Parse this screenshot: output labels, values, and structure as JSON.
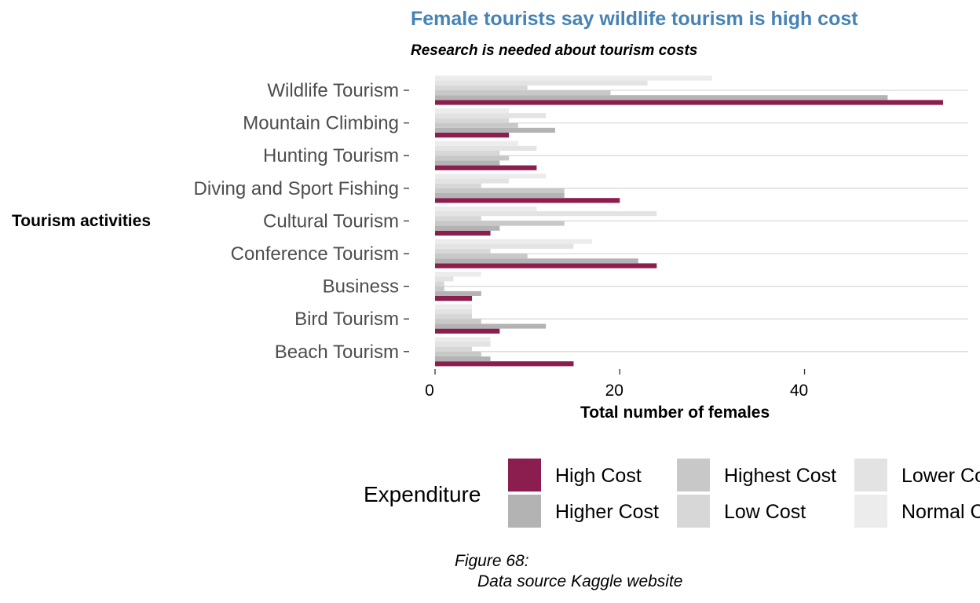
{
  "chart_data": {
    "type": "bar",
    "orientation": "horizontal",
    "title": "Female tourists say wildlife tourism is high cost",
    "subtitle": "Research is needed about tourism costs",
    "xlabel": "Total number of females",
    "ylabel": "Tourism activities",
    "xlim": [
      0,
      58
    ],
    "xticks": [
      0,
      20,
      40
    ],
    "grid": "horizontal major lines",
    "categories": [
      "Wildlife Tourism",
      "Mountain Climbing",
      "Hunting Tourism",
      "Diving and Sport Fishing",
      "Cultural Tourism",
      "Conference Tourism",
      "Business",
      "Bird Tourism",
      "Beach Tourism"
    ],
    "series": [
      {
        "name": "High Cost",
        "color": "#8b1e4f",
        "values": [
          55,
          8,
          11,
          20,
          6,
          24,
          4,
          7,
          15
        ]
      },
      {
        "name": "Higher Cost",
        "color": "#b3b3b3",
        "values": [
          49,
          13,
          7,
          14,
          7,
          22,
          5,
          12,
          6
        ]
      },
      {
        "name": "Highest Cost",
        "color": "#c8c8c8",
        "values": [
          19,
          9,
          8,
          14,
          14,
          10,
          1,
          5,
          5
        ]
      },
      {
        "name": "Low Cost",
        "color": "#d7d7d7",
        "values": [
          10,
          8,
          7,
          5,
          5,
          6,
          1,
          4,
          4
        ]
      },
      {
        "name": "Lower Cost",
        "color": "#e3e3e3",
        "values": [
          23,
          12,
          11,
          8,
          24,
          15,
          2,
          4,
          6
        ]
      },
      {
        "name": "Normal Cost",
        "color": "#ececec",
        "values": [
          30,
          8,
          9,
          12,
          11,
          17,
          5,
          4,
          6
        ]
      }
    ],
    "legend": {
      "title": "Expenditure",
      "position": "bottom"
    },
    "caption": [
      "Figure 68:",
      "Data source Kaggle website"
    ]
  }
}
